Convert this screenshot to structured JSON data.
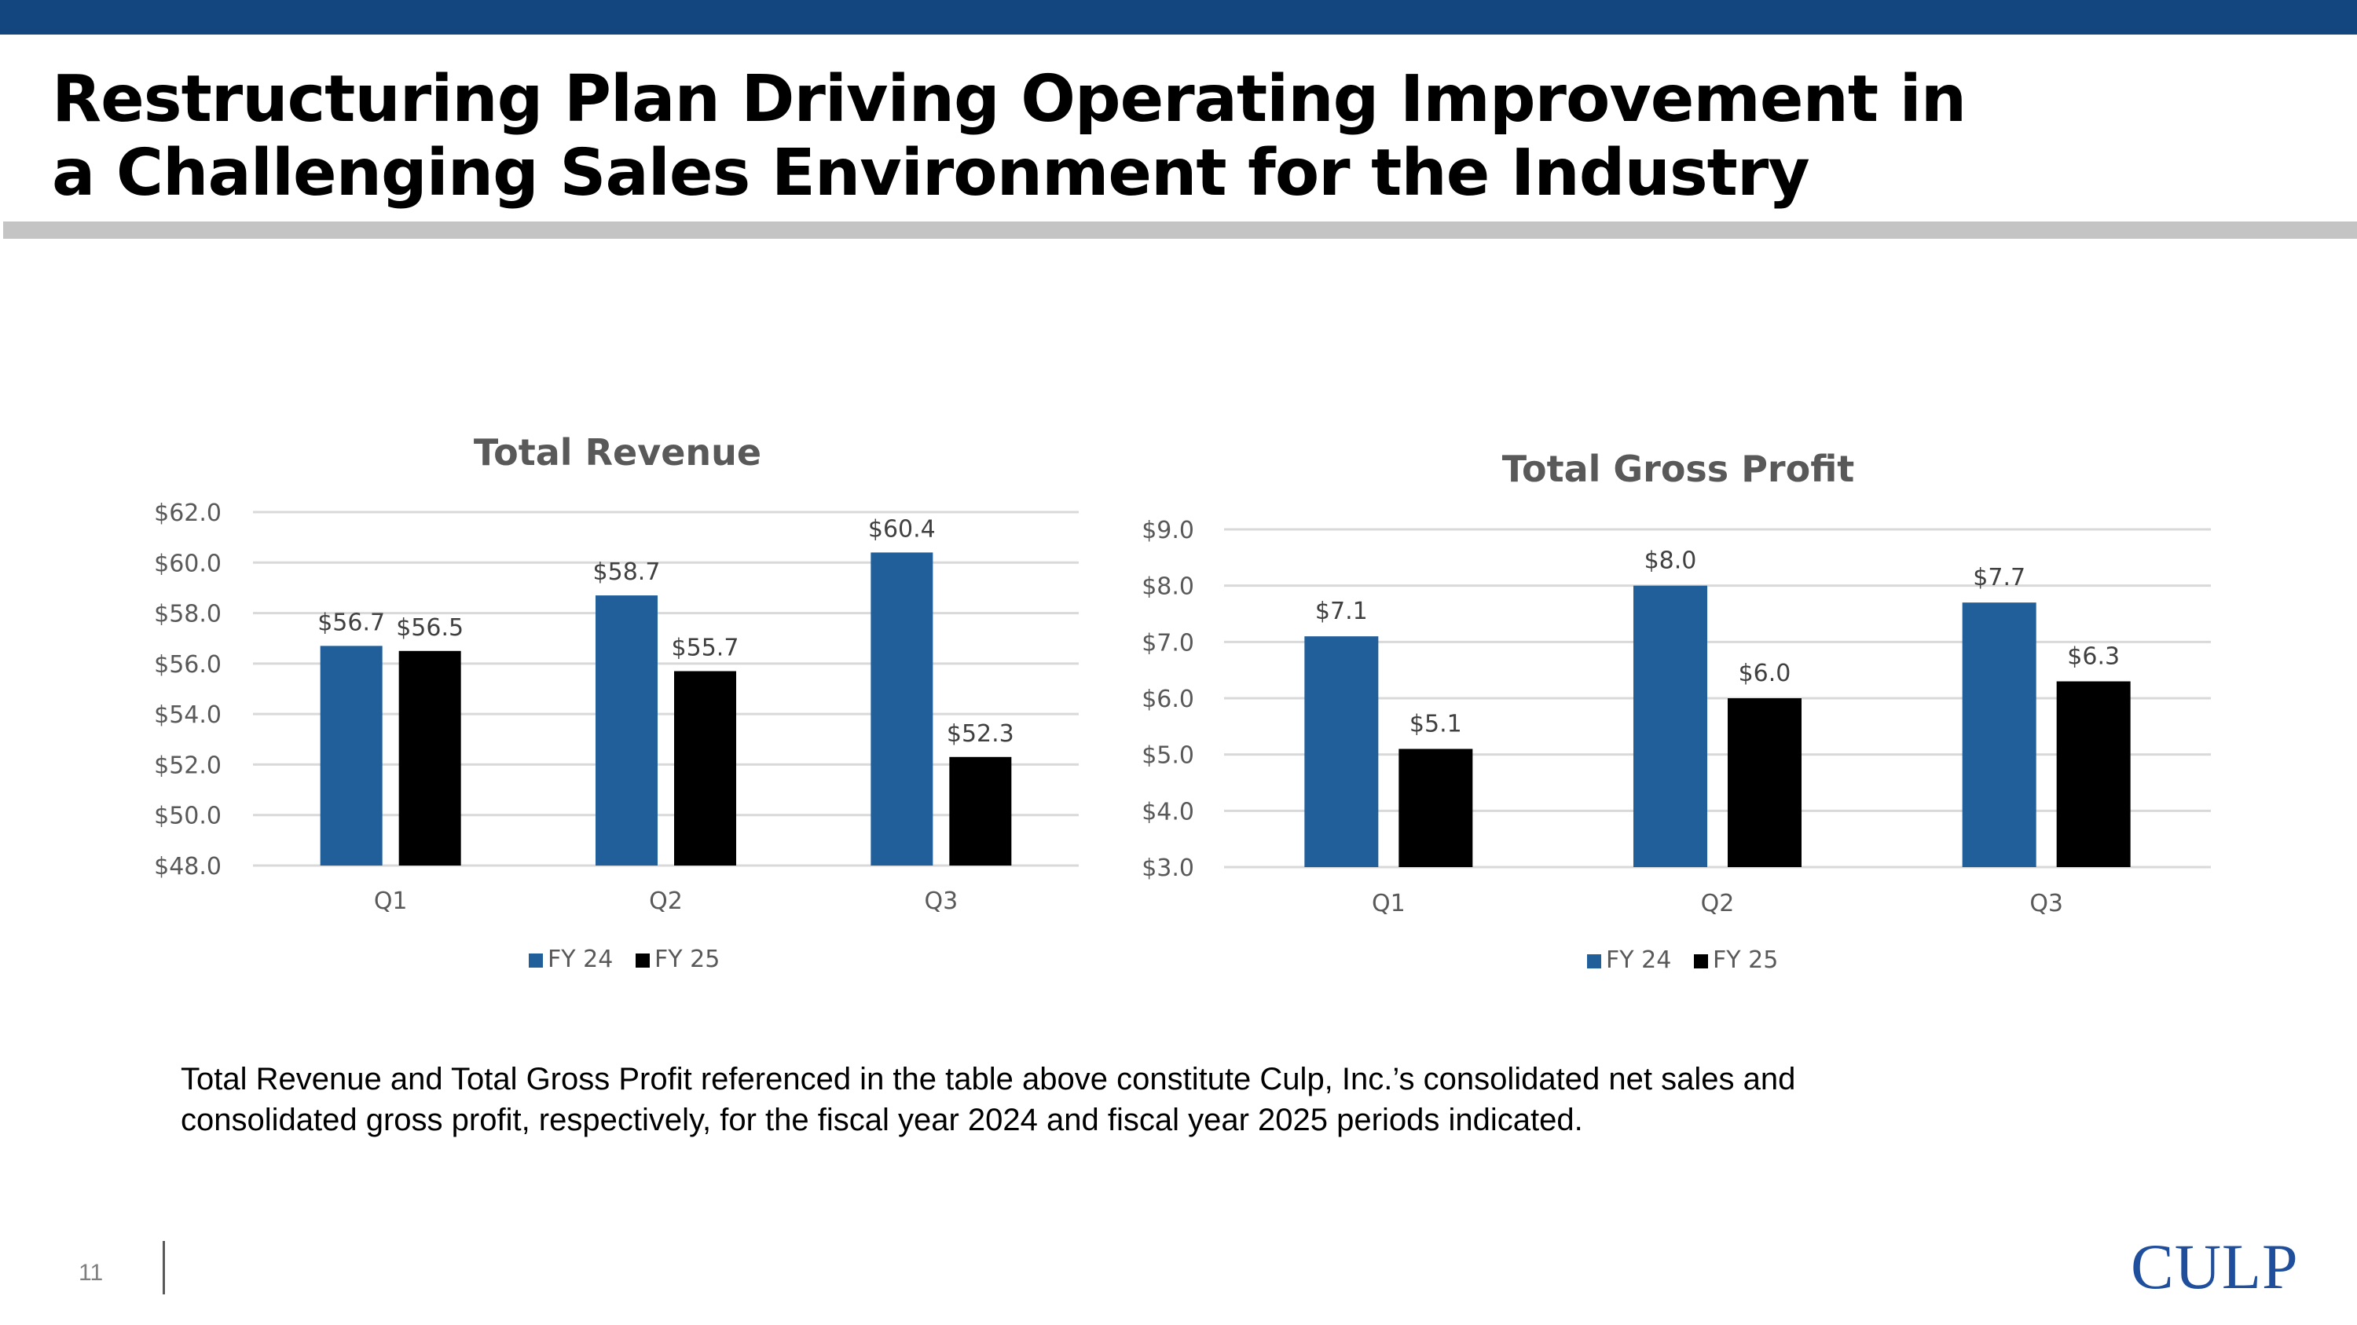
{
  "header": {
    "title_lines": [
      "Restructuring Plan Driving Operating Improvement in",
      "a Challenging Sales Environment for the Industry"
    ]
  },
  "colors": {
    "top_bar": "#13467f",
    "fy24": "#215f9a",
    "fy25": "#000000",
    "logo": "#1f4f9c"
  },
  "chart_data": [
    {
      "type": "bar",
      "title": "Total Revenue",
      "categories": [
        "Q1",
        "Q2",
        "Q3"
      ],
      "series": [
        {
          "name": "FY 24",
          "values": [
            56.7,
            58.7,
            60.4
          ],
          "labels": [
            "$56.7",
            "$58.7",
            "$60.4"
          ]
        },
        {
          "name": "FY 25",
          "values": [
            56.5,
            55.7,
            52.3
          ],
          "labels": [
            "$56.5",
            "$55.7",
            "$52.3"
          ]
        }
      ],
      "xlabel": "",
      "ylabel": "",
      "ylim": [
        48,
        62
      ],
      "yticks": [
        48,
        50,
        52,
        54,
        56,
        58,
        60,
        62
      ],
      "ytick_labels": [
        "$48.0",
        "$50.0",
        "$52.0",
        "$54.0",
        "$56.0",
        "$58.0",
        "$60.0",
        "$62.0"
      ],
      "grid": true,
      "legend": "bottom"
    },
    {
      "type": "bar",
      "title": "Total Gross Profit",
      "categories": [
        "Q1",
        "Q2",
        "Q3"
      ],
      "series": [
        {
          "name": "FY 24",
          "values": [
            7.1,
            8.0,
            7.7
          ],
          "labels": [
            "$7.1",
            "$8.0",
            "$7.7"
          ]
        },
        {
          "name": "FY 25",
          "values": [
            5.1,
            6.0,
            6.3
          ],
          "labels": [
            "$5.1",
            "$6.0",
            "$6.3"
          ]
        }
      ],
      "xlabel": "",
      "ylabel": "",
      "ylim": [
        3,
        9
      ],
      "yticks": [
        3,
        4,
        5,
        6,
        7,
        8,
        9
      ],
      "ytick_labels": [
        "$3.0",
        "$4.0",
        "$5.0",
        "$6.0",
        "$7.0",
        "$8.0",
        "$9.0"
      ],
      "grid": true,
      "legend": "bottom"
    }
  ],
  "footnote": {
    "lines": [
      "Total Revenue and Total Gross Profit referenced in the table above constitute Culp, Inc.’s consolidated net sales and",
      "consolidated gross profit, respectively, for the fiscal year 2024 and fiscal year 2025 periods indicated."
    ]
  },
  "footer": {
    "page_number": "11",
    "logo_text": "CULP"
  }
}
